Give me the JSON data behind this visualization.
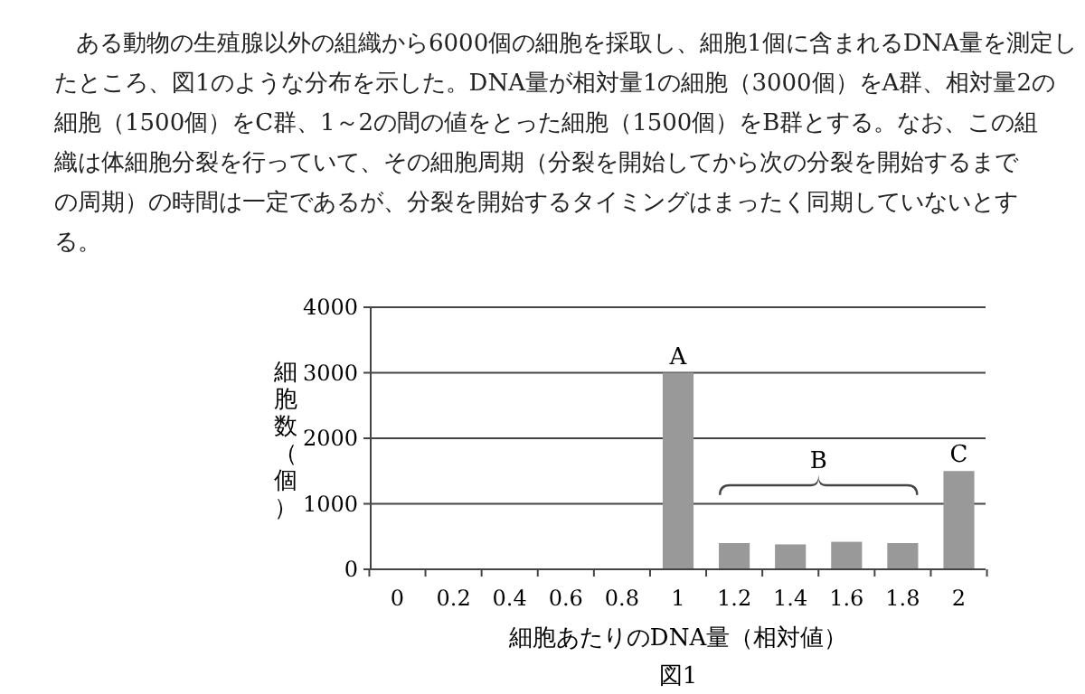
{
  "chart_data": {
    "type": "bar",
    "subtitle": "ある動物の生殖腺以外の組織から6000個の細胞を採取し、細胞1個に含まれるDNA量を測定したところ、図1のような分布を示した。DNA量が相対量1の細胞（3000個）をA群、相対量2の細胞（1500個）をC群、1～2の間の値をとった細胞（1500個）をB群とする。なお、この組織は体細胞分裂を行っていて、その細胞周期（分裂を開始してから次の分裂を開始するまでの周期）の時間は一定であるが、分裂を開始するタイミングはまったく同期していないとする。",
    "title": "図1",
    "xlabel": "細胞あたりのDNA量（相対値）",
    "ylabel": "細胞数（個）",
    "categories": [
      "0",
      "0.2",
      "0.4",
      "0.6",
      "0.8",
      "1",
      "1.2",
      "1.4",
      "1.6",
      "1.8",
      "2"
    ],
    "values": [
      null,
      null,
      null,
      null,
      null,
      3000,
      400,
      380,
      420,
      400,
      1500
    ],
    "color": "#999999",
    "ylim": [
      0,
      4000
    ],
    "yticks": [
      0,
      1000,
      2000,
      3000,
      4000
    ],
    "grid": "y",
    "annotations": [
      {
        "text": "A",
        "x": "1",
        "y": 3000
      },
      "B",
      {
        "text": "C",
        "x": "2",
        "y": 1500
      }
    ]
  }
}
